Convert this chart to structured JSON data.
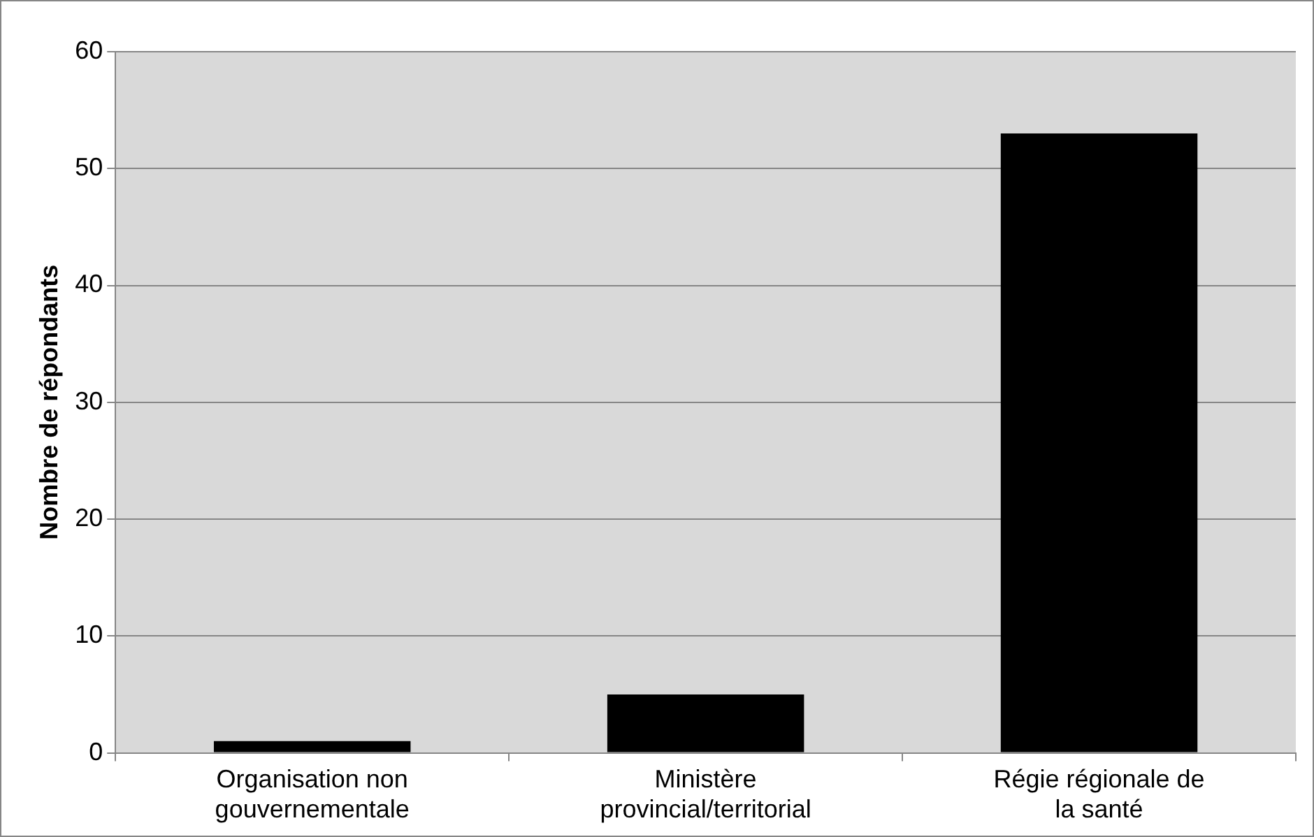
{
  "chart_data": {
    "type": "bar",
    "ylabel": "Nombre de répondants",
    "categories": [
      "Organisation non gouvernementale",
      "Ministère provincial/territorial",
      "Régie régionale de la santé"
    ],
    "values": [
      1,
      5,
      53
    ],
    "color": "#000000",
    "ylim": [
      0,
      60
    ],
    "yticks": [
      0,
      10,
      20,
      30,
      40,
      50,
      60
    ],
    "grid": "y",
    "legend": false
  }
}
